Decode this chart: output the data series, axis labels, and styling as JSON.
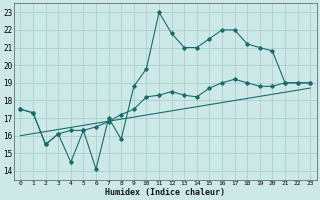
{
  "xlabel": "Humidex (Indice chaleur)",
  "xlim": [
    -0.5,
    23.5
  ],
  "ylim": [
    13.5,
    23.5
  ],
  "xticks": [
    0,
    1,
    2,
    3,
    4,
    5,
    6,
    7,
    8,
    9,
    10,
    11,
    12,
    13,
    14,
    15,
    16,
    17,
    18,
    19,
    20,
    21,
    22,
    23
  ],
  "yticks": [
    14,
    15,
    16,
    17,
    18,
    19,
    20,
    21,
    22,
    23
  ],
  "bg_color": "#cce9e7",
  "grid_color": "#aacfcc",
  "line_color": "#1a6b6b",
  "line1_x": [
    0,
    1,
    2,
    3,
    4,
    5,
    6,
    7,
    8,
    9,
    10,
    11,
    12,
    13,
    14,
    15,
    16,
    17,
    18,
    19,
    20,
    21,
    22,
    23
  ],
  "line1_y": [
    17.5,
    17.3,
    15.5,
    16.1,
    14.5,
    16.3,
    14.1,
    17.0,
    15.8,
    18.8,
    19.8,
    23.0,
    21.8,
    21.0,
    21.0,
    21.5,
    22.0,
    22.0,
    21.2,
    21.0,
    20.8,
    19.0,
    19.0,
    19.0
  ],
  "line2_x": [
    0,
    1,
    2,
    3,
    4,
    5,
    6,
    7,
    8,
    9,
    10,
    11,
    12,
    13,
    14,
    15,
    16,
    17,
    18,
    19,
    20,
    21,
    22,
    23
  ],
  "line2_y": [
    17.5,
    17.3,
    15.5,
    16.1,
    16.3,
    16.3,
    16.5,
    16.8,
    17.2,
    17.5,
    18.2,
    18.3,
    18.5,
    18.3,
    18.2,
    18.7,
    19.0,
    19.2,
    19.0,
    18.8,
    18.8,
    19.0,
    19.0,
    19.0
  ],
  "line3_x": [
    0,
    23
  ],
  "line3_y": [
    16.0,
    18.7
  ]
}
